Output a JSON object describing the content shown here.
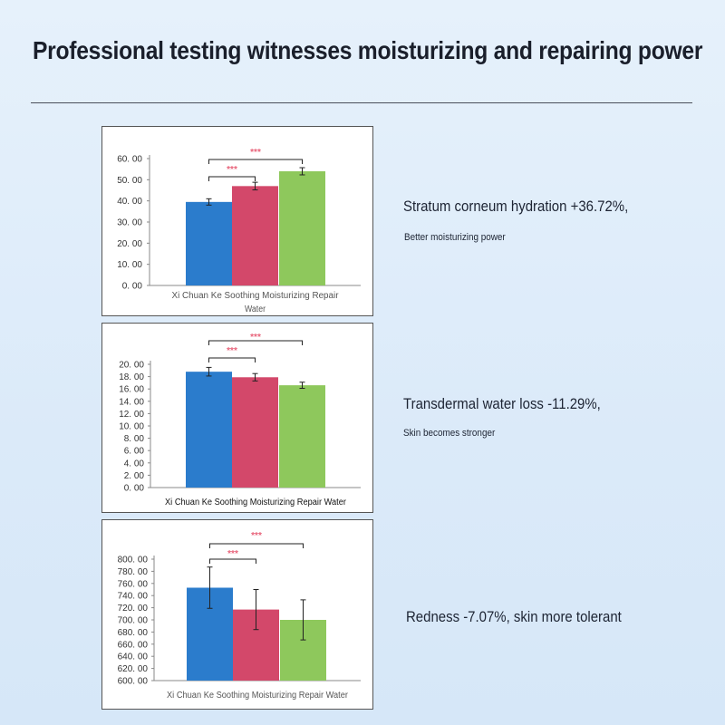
{
  "header": {
    "title": "Professional testing witnesses moisturizing and repairing power"
  },
  "colors": {
    "bar1": "#2b7ccc",
    "bar2": "#d3486a",
    "bar3": "#8ec85c",
    "significance": "#e8637a"
  },
  "captions": [
    {
      "main": "Stratum corneum hydration +36.72%,",
      "sub": "Better moisturizing power"
    },
    {
      "main": "Transdermal water loss -11.29%,",
      "sub": "Skin becomes stronger"
    },
    {
      "main": "Redness -7.07%, skin more tolerant",
      "sub": ""
    }
  ],
  "chart_data": [
    {
      "type": "bar",
      "title": "",
      "xlabel": "Xi Chuan Ke Soothing Moisturizing Repair Water",
      "xlabel_lines": [
        "Xi Chuan Ke Soothing Moisturizing Repair",
        "Water"
      ],
      "ylabel": "",
      "ylim": [
        0,
        60
      ],
      "yticks": [
        "0. 00",
        "10. 00",
        "20. 00",
        "30. 00",
        "40. 00",
        "50. 00",
        "60. 00"
      ],
      "series": [
        {
          "name": "group1",
          "values": [
            39.5
          ],
          "errors": [
            1.5
          ]
        },
        {
          "name": "group2",
          "values": [
            47.0
          ],
          "errors": [
            1.8
          ]
        },
        {
          "name": "group3",
          "values": [
            54.0
          ],
          "errors": [
            1.7
          ]
        }
      ],
      "significance": [
        {
          "from": 0,
          "to": 1,
          "label": "***"
        },
        {
          "from": 0,
          "to": 2,
          "label": "***"
        }
      ]
    },
    {
      "type": "bar",
      "title": "",
      "xlabel": "Xi Chuan Ke Soothing Moisturizing Repair Water",
      "xlabel_lines": [
        "Xi Chuan Ke Soothing Moisturizing Repair Water"
      ],
      "ylabel": "",
      "ylim": [
        0,
        20
      ],
      "yticks": [
        "0. 00",
        "2. 00",
        "4. 00",
        "6. 00",
        "8. 00",
        "10. 00",
        "12. 00",
        "14. 00",
        "16. 00",
        "18. 00",
        "20. 00"
      ],
      "series": [
        {
          "name": "group1",
          "values": [
            18.8
          ],
          "errors": [
            0.7
          ]
        },
        {
          "name": "group2",
          "values": [
            17.9
          ],
          "errors": [
            0.6
          ]
        },
        {
          "name": "group3",
          "values": [
            16.6
          ],
          "errors": [
            0.5
          ]
        }
      ],
      "significance": [
        {
          "from": 0,
          "to": 1,
          "label": "***"
        },
        {
          "from": 0,
          "to": 2,
          "label": "***"
        }
      ]
    },
    {
      "type": "bar",
      "title": "",
      "xlabel": "Xi Chuan Ke Soothing Moisturizing Repair Water",
      "xlabel_lines": [
        "Xi Chuan Ke Soothing Moisturizing Repair Water"
      ],
      "ylabel": "",
      "ylim": [
        600,
        800
      ],
      "yticks": [
        "600. 00",
        "620. 00",
        "640. 00",
        "660. 00",
        "680. 00",
        "700. 00",
        "720. 00",
        "740. 00",
        "760. 00",
        "780. 00",
        "800. 00"
      ],
      "series": [
        {
          "name": "group1",
          "values": [
            753
          ],
          "errors": [
            34
          ]
        },
        {
          "name": "group2",
          "values": [
            717
          ],
          "errors": [
            33
          ]
        },
        {
          "name": "group3",
          "values": [
            700
          ],
          "errors": [
            33
          ]
        }
      ],
      "significance": [
        {
          "from": 0,
          "to": 1,
          "label": "***"
        },
        {
          "from": 0,
          "to": 2,
          "label": "***"
        }
      ]
    }
  ]
}
